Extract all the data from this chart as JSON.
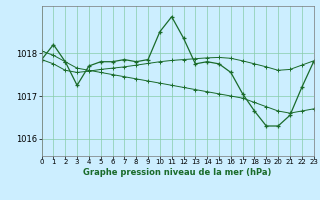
{
  "title": "Graphe pression niveau de la mer (hPa)",
  "background_color": "#cceeff",
  "grid_color": "#88ccaa",
  "line_color": "#1a6b2a",
  "x_min": 0,
  "x_max": 23,
  "y_min": 1015.6,
  "y_max": 1019.1,
  "yticks": [
    1016,
    1017,
    1018
  ],
  "xticks": [
    0,
    1,
    2,
    3,
    4,
    5,
    6,
    7,
    8,
    9,
    10,
    11,
    12,
    13,
    14,
    15,
    16,
    17,
    18,
    19,
    20,
    21,
    22,
    23
  ],
  "hourly": [
    1017.85,
    1018.2,
    1017.8,
    1017.25,
    1017.7,
    1017.8,
    1017.8,
    1017.85,
    1017.8,
    1017.85,
    1018.5,
    1018.85,
    1018.35,
    1017.75,
    1017.8,
    1017.75,
    1017.55,
    1017.05,
    1016.65,
    1016.3,
    1016.3,
    1016.55,
    1017.2,
    1017.8
  ],
  "line_down": [
    1018.05,
    1017.95,
    1017.8,
    1017.65,
    1017.6,
    1017.55,
    1017.5,
    1017.45,
    1017.4,
    1017.35,
    1017.3,
    1017.25,
    1017.2,
    1017.15,
    1017.1,
    1017.05,
    1017.0,
    1016.95,
    1016.85,
    1016.75,
    1016.65,
    1016.6,
    1016.65,
    1016.7
  ],
  "line_up": [
    1017.85,
    1017.75,
    1017.6,
    1017.55,
    1017.58,
    1017.62,
    1017.65,
    1017.68,
    1017.72,
    1017.76,
    1017.8,
    1017.83,
    1017.85,
    1017.87,
    1017.89,
    1017.9,
    1017.88,
    1017.82,
    1017.75,
    1017.68,
    1017.6,
    1017.62,
    1017.72,
    1017.82
  ]
}
